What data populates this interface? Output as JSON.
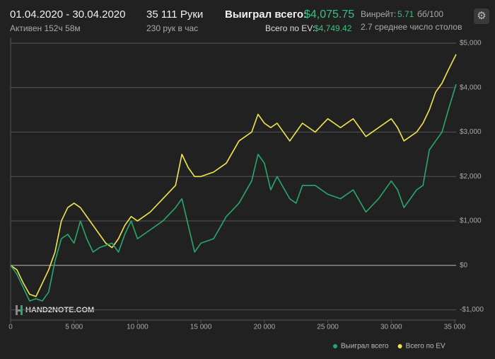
{
  "header": {
    "period": "01.04.2020 - 30.04.2020",
    "active": "Активен 152ч 58м",
    "hands": "35 111 Руки",
    "hands_per_hour": "230 рук в час",
    "won_label": "Выиграл всего:",
    "won_value": "$4,075.75",
    "ev_label": "Всего по EV:",
    "ev_value": "$4,749.42",
    "winrate_label": "Винрейт:",
    "winrate_value": "5.71",
    "winrate_unit": "бб/100",
    "tables": "2.7 среднее число столов"
  },
  "watermark": "HAND2NOTE.COM",
  "chart_data": {
    "type": "line",
    "x": [
      0,
      500,
      1000,
      1500,
      2000,
      2500,
      3000,
      3500,
      4000,
      4500,
      5000,
      5500,
      6000,
      6500,
      7000,
      7500,
      8000,
      8500,
      9000,
      9500,
      10000,
      11000,
      12000,
      13000,
      13500,
      14000,
      14500,
      15000,
      16000,
      17000,
      18000,
      19000,
      19500,
      20000,
      20500,
      21000,
      22000,
      22500,
      23000,
      24000,
      25000,
      26000,
      27000,
      28000,
      29000,
      30000,
      30500,
      31000,
      32000,
      32500,
      33000,
      33500,
      34000,
      34500,
      35111
    ],
    "series": [
      {
        "name": "Выиграл всего",
        "color": "#27a86b",
        "values": [
          0,
          -200,
          -500,
          -800,
          -750,
          -800,
          -600,
          100,
          600,
          700,
          500,
          1000,
          600,
          300,
          400,
          450,
          500,
          300,
          700,
          1000,
          600,
          800,
          1000,
          1300,
          1500,
          900,
          300,
          500,
          600,
          1100,
          1400,
          1900,
          2500,
          2300,
          1700,
          2000,
          1500,
          1400,
          1800,
          1800,
          1600,
          1500,
          1700,
          1200,
          1500,
          1900,
          1700,
          1300,
          1700,
          1800,
          2600,
          2800,
          3000,
          3500,
          4075.75
        ]
      },
      {
        "name": "Всего по EV",
        "color": "#f2e64a",
        "values": [
          0,
          -100,
          -400,
          -650,
          -700,
          -400,
          -100,
          300,
          1000,
          1300,
          1400,
          1300,
          1100,
          900,
          700,
          500,
          400,
          600,
          900,
          1100,
          1000,
          1200,
          1500,
          1800,
          2500,
          2200,
          2000,
          2000,
          2100,
          2300,
          2800,
          3000,
          3400,
          3200,
          3100,
          3200,
          2800,
          3000,
          3200,
          3000,
          3300,
          3100,
          3300,
          2900,
          3100,
          3300,
          3100,
          2800,
          3000,
          3200,
          3500,
          3900,
          4100,
          4400,
          4749.42
        ]
      }
    ],
    "xlim": [
      0,
      35111
    ],
    "ylim": [
      -1230,
      5000
    ],
    "xticks": [
      0,
      {
        "value": 5000,
        "label": "5 000"
      },
      {
        "value": 10000,
        "label": "10 000"
      },
      {
        "value": 15000,
        "label": "15 000"
      },
      {
        "value": 20000,
        "label": "20 000"
      },
      {
        "value": 25000,
        "label": "25 000"
      },
      {
        "value": 30000,
        "label": "30 000"
      },
      {
        "value": 35000,
        "label": "35 000"
      }
    ],
    "yticks": [
      {
        "value": -1000,
        "label": "-$1,000"
      },
      {
        "value": 0,
        "label": "$0"
      },
      {
        "value": 1000,
        "label": "$1,000"
      },
      {
        "value": 2000,
        "label": "$2,000"
      },
      {
        "value": 3000,
        "label": "$3,000"
      },
      {
        "value": 4000,
        "label": "$4,000"
      },
      {
        "value": 5000,
        "label": "$5,000"
      }
    ],
    "grid": true
  }
}
